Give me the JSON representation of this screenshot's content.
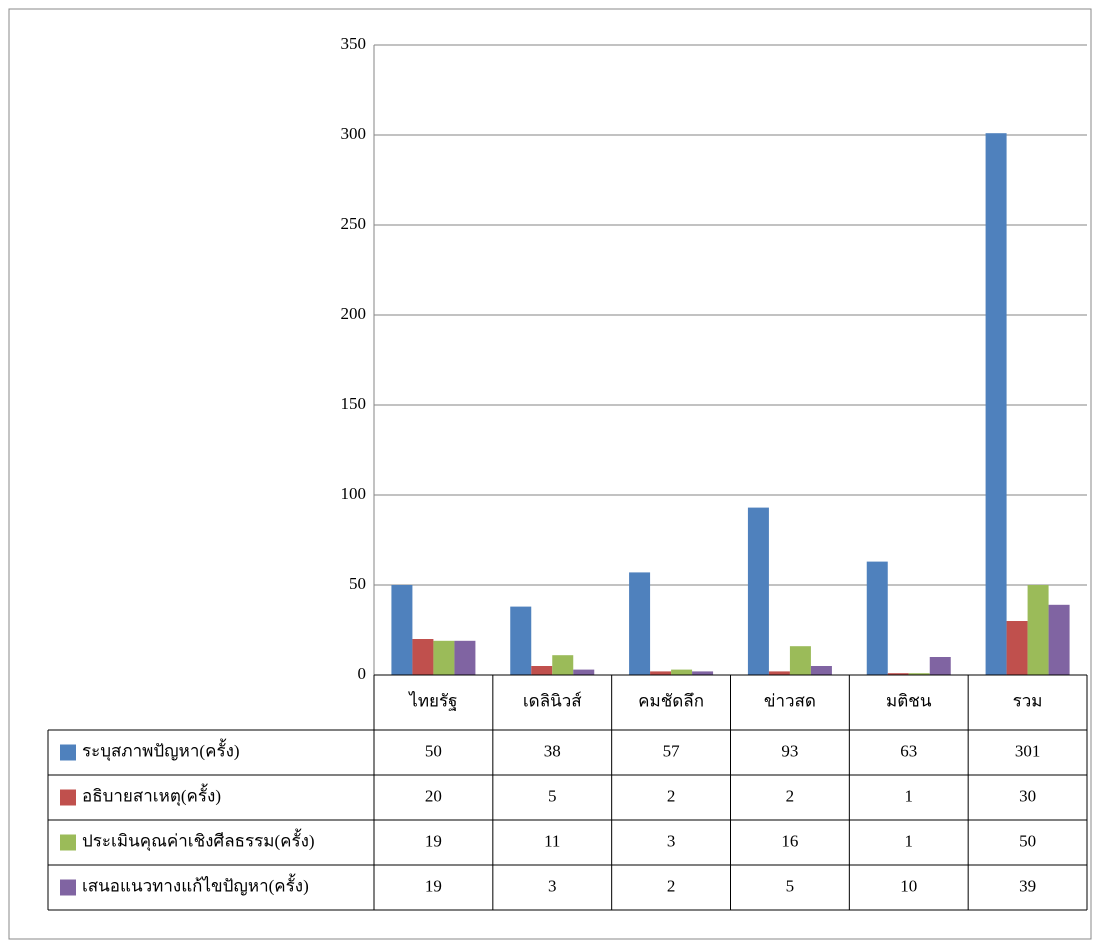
{
  "chart_data": {
    "type": "bar",
    "categories": [
      "ไทยรัฐ",
      "เดลินิวส์",
      "คมชัดลึก",
      "ข่าวสด",
      "มติชน",
      "รวม"
    ],
    "series": [
      {
        "name": "ระบุสภาพปัญหา(ครั้ง)",
        "color": "#4f81bd",
        "values": [
          50,
          38,
          57,
          93,
          63,
          301
        ]
      },
      {
        "name": "อธิบายสาเหตุ(ครั้ง)",
        "color": "#c0504d",
        "values": [
          20,
          5,
          2,
          2,
          1,
          30
        ]
      },
      {
        "name": "ประเมินคุณค่าเชิงศีลธรรม(ครั้ง)",
        "color": "#9bbb59",
        "values": [
          19,
          11,
          3,
          16,
          1,
          50
        ]
      },
      {
        "name": "เสนอแนวทางแก้ไขปัญหา(ครั้ง)",
        "color": "#8064a2",
        "values": [
          19,
          3,
          2,
          5,
          10,
          39
        ]
      }
    ],
    "ylim": [
      0,
      350
    ],
    "yticks": [
      0,
      50,
      100,
      150,
      200,
      250,
      300,
      350
    ],
    "grid": true
  }
}
